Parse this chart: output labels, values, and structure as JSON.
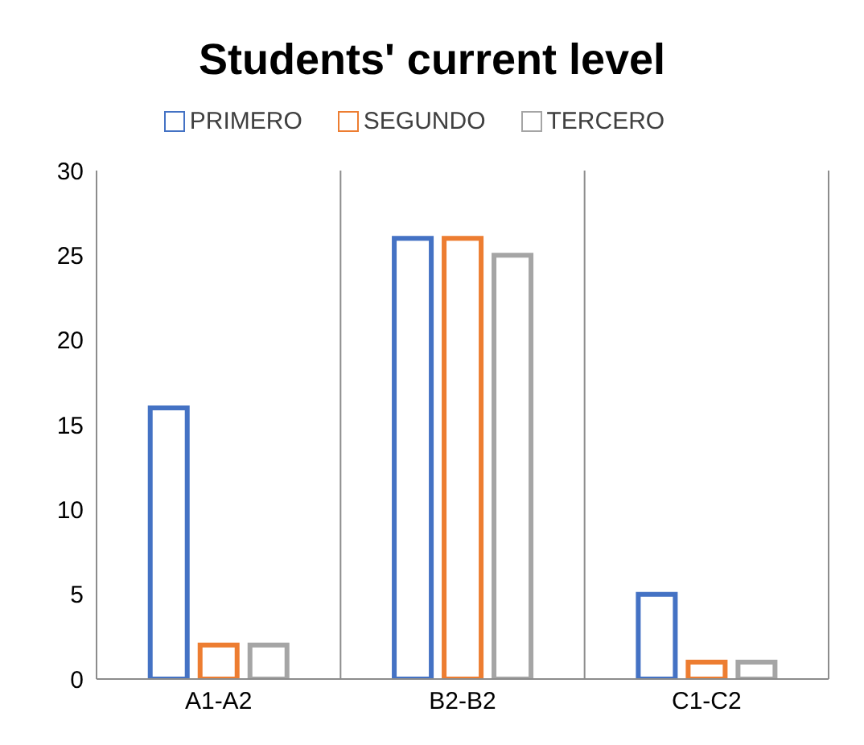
{
  "chart_data": {
    "type": "bar",
    "title": "Students' current level",
    "categories": [
      "A1-A2",
      "B2-B2",
      "C1-C2"
    ],
    "series": [
      {
        "name": "PRIMERO",
        "color": "#4472c4",
        "values": [
          16,
          26,
          5
        ]
      },
      {
        "name": "SEGUNDO",
        "color": "#ed7d31",
        "values": [
          2,
          26,
          1
        ]
      },
      {
        "name": "TERCERO",
        "color": "#a5a5a5",
        "values": [
          2,
          25,
          1
        ]
      }
    ],
    "ylim": [
      0,
      30
    ],
    "yticks": [
      0,
      5,
      10,
      15,
      20,
      25,
      30
    ],
    "grid": "x",
    "legend": "top"
  }
}
